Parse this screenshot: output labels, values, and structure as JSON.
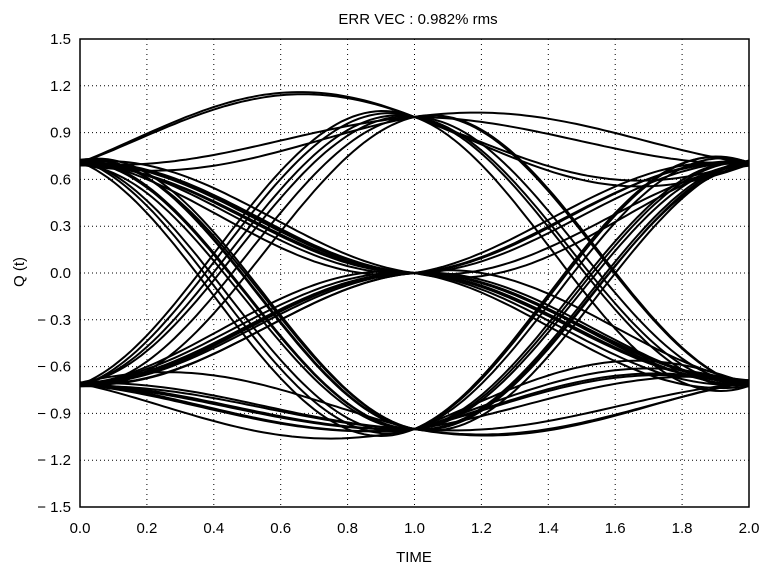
{
  "chart_data": {
    "type": "line",
    "title": "ERR VEC : 0.982% rms",
    "xlabel": "TIME",
    "ylabel": "Q (t)",
    "xlim": [
      0.0,
      2.0
    ],
    "ylim": [
      -1.5,
      1.5
    ],
    "xticks": [
      "0.0",
      "0.2",
      "0.4",
      "0.6",
      "0.8",
      "1.0",
      "1.2",
      "1.4",
      "1.6",
      "1.8",
      "2.0"
    ],
    "yticks": [
      "1.5",
      "1.2",
      "0.9",
      "0.6",
      "0.3",
      "0.0",
      "− 0.3",
      "− 0.6",
      "− 0.9",
      "− 1.2",
      "− 1.5"
    ],
    "grid": true,
    "legend": "none",
    "trace_color": "#000000",
    "sample_times": [
      0.0,
      1.0,
      2.0
    ],
    "symbol_levels": [
      -0.707,
      0.707
    ],
    "crossing_values": [
      -1.0,
      0.0,
      1.0
    ]
  }
}
